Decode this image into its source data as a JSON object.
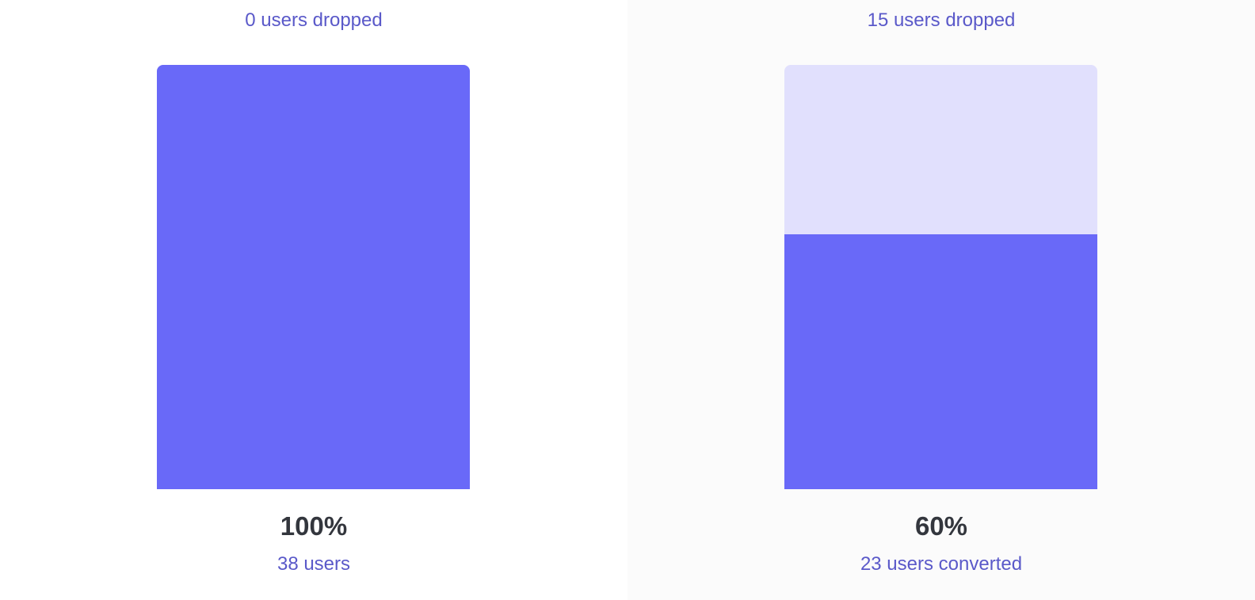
{
  "colors": {
    "converted": "#6969f8",
    "dropped": "#e1e0fd",
    "label_accent": "#5a59c9",
    "percent_text": "#33363d"
  },
  "chart_data": {
    "type": "bar",
    "title": "",
    "xlabel": "",
    "ylabel": "",
    "ylim": [
      0,
      100
    ],
    "steps": [
      {
        "dropped_label": "0 users dropped",
        "percent": 100,
        "percent_label": "100%",
        "users_label": "38 users",
        "users": 38,
        "dropped": 0
      },
      {
        "dropped_label": "15 users dropped",
        "percent": 60,
        "percent_label": "60%",
        "users_label": "23 users converted",
        "users": 23,
        "dropped": 15
      }
    ]
  }
}
